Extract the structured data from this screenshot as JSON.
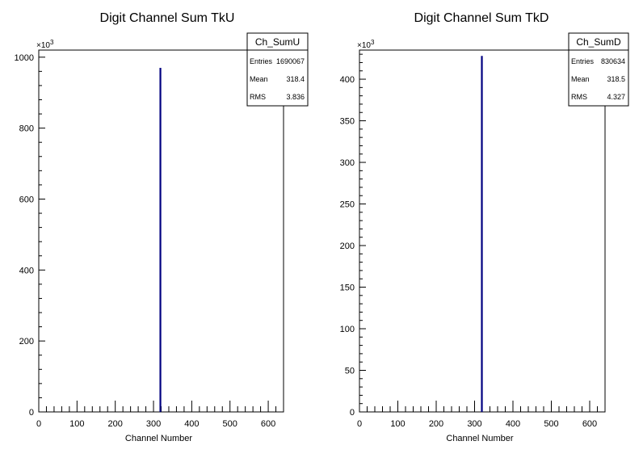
{
  "chart_data": [
    {
      "type": "bar",
      "title": "Digit Channel Sum TkU",
      "xlabel": "Channel Number",
      "ylabel": "",
      "y_multiplier": "×10",
      "y_multiplier_exp": "3",
      "xlim": [
        0,
        640
      ],
      "ylim": [
        0,
        1020
      ],
      "xticks": [
        0,
        100,
        200,
        300,
        400,
        500,
        600
      ],
      "yticks": [
        0,
        200,
        400,
        600,
        800,
        1000
      ],
      "bins": [
        {
          "x": 318,
          "value": 970
        }
      ],
      "bar_color": "#000080",
      "stats": {
        "name": "Ch_SumU",
        "rows": [
          {
            "label": "Entries",
            "value": "1690067"
          },
          {
            "label": "Mean",
            "value": "318.4"
          },
          {
            "label": "RMS",
            "value": "3.836"
          }
        ]
      }
    },
    {
      "type": "bar",
      "title": "Digit Channel Sum TkD",
      "xlabel": "Channel Number",
      "ylabel": "",
      "y_multiplier": "×10",
      "y_multiplier_exp": "3",
      "xlim": [
        0,
        640
      ],
      "ylim": [
        0,
        435
      ],
      "xticks": [
        0,
        100,
        200,
        300,
        400,
        500,
        600
      ],
      "yticks": [
        0,
        50,
        100,
        150,
        200,
        250,
        300,
        350,
        400
      ],
      "bins": [
        {
          "x": 319,
          "value": 428
        }
      ],
      "bar_color": "#000080",
      "stats": {
        "name": "Ch_SumD",
        "rows": [
          {
            "label": "Entries",
            "value": "830634"
          },
          {
            "label": "Mean",
            "value": "318.5"
          },
          {
            "label": "RMS",
            "value": "4.327"
          }
        ]
      }
    }
  ]
}
